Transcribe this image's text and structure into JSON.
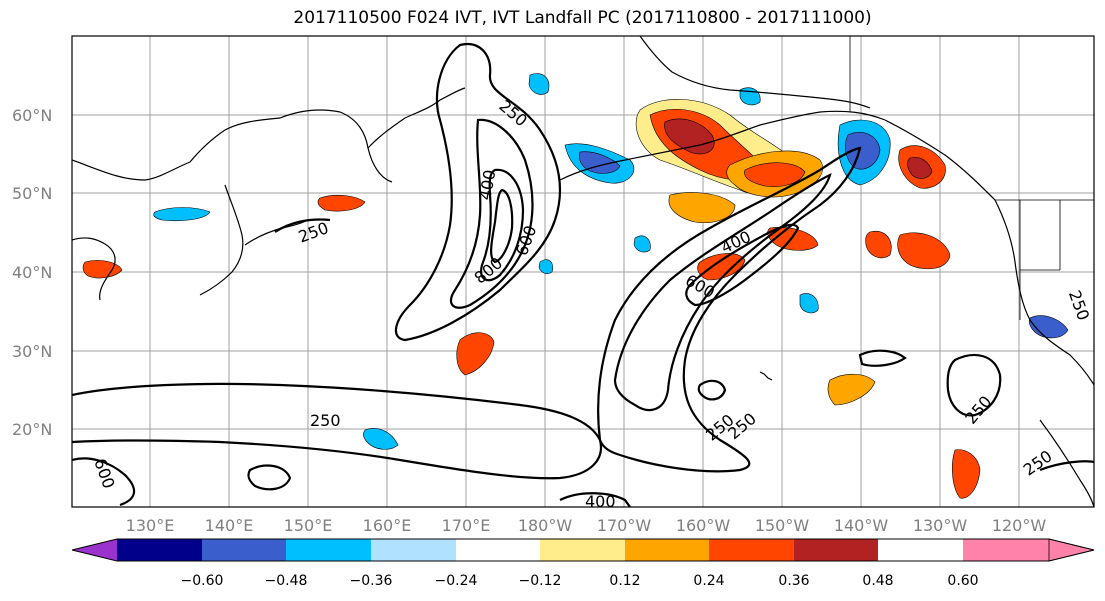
{
  "title": "2017110500 F024 IVT, IVT Landfall PC (2017110800 - 2017111000)",
  "lat_labels": [
    "60°N",
    "50°N",
    "40°N",
    "30°N",
    "20°N"
  ],
  "lon_labels": [
    "130°E",
    "140°E",
    "150°E",
    "160°E",
    "170°E",
    "180°W",
    "170°W",
    "160°W",
    "150°W",
    "140°W",
    "130°W",
    "120°W"
  ],
  "contour_labels": [
    "250",
    "400",
    "600",
    "800",
    "250",
    "600",
    "400",
    "600",
    "250",
    "250",
    "250",
    "400",
    "250",
    "250",
    "250"
  ],
  "colorbar": {
    "colors": [
      "#9a32cd",
      "#00008b",
      "#3a5fcd",
      "#00bfff",
      "#b0e2ff",
      "#ffffff",
      "#ffec8b",
      "#ffa500",
      "#ff4500",
      "#b22222",
      "#ff82ab"
    ],
    "ticks": [
      "−0.60",
      "−0.48",
      "−0.36",
      "−0.24",
      "−0.12",
      "0.12",
      "0.24",
      "0.36",
      "0.48",
      "0.60"
    ]
  }
}
